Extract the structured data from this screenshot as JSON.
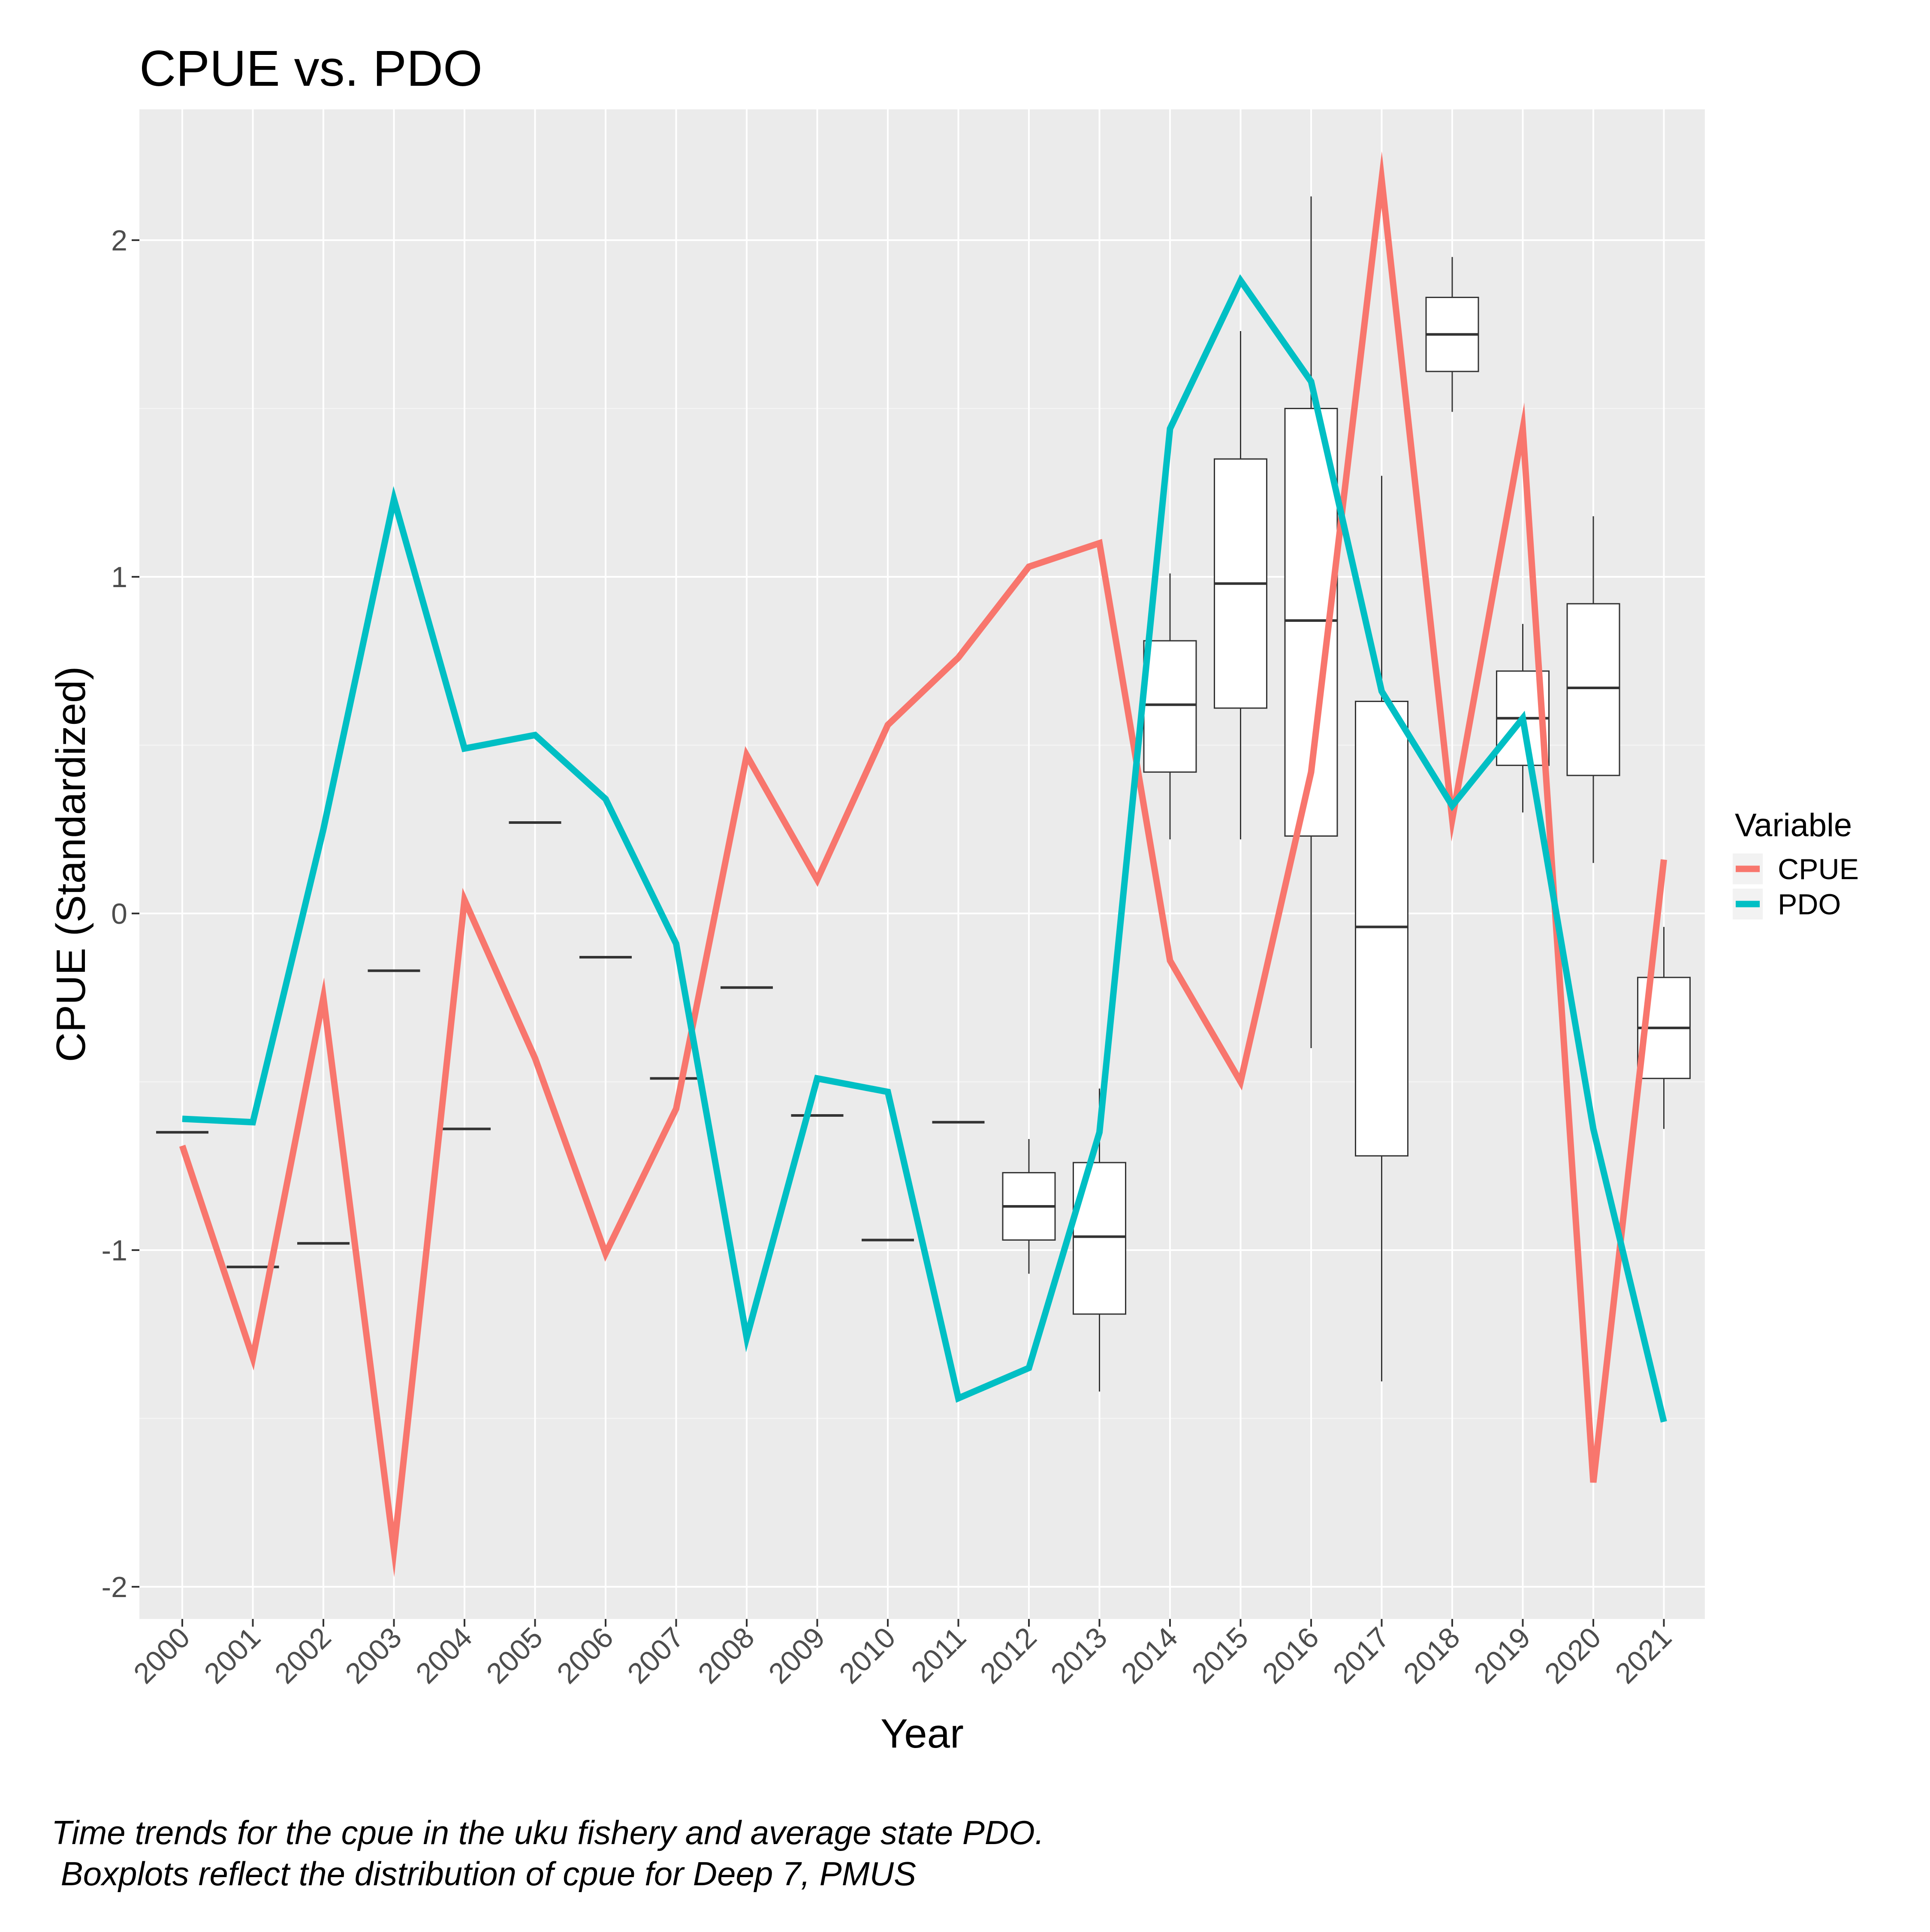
{
  "chart_data": {
    "type": "line",
    "title": "CPUE vs. PDO",
    "xlabel": "Year",
    "ylabel": "CPUE (Standardized)",
    "categories": [
      "2000",
      "2001",
      "2002",
      "2003",
      "2004",
      "2005",
      "2006",
      "2007",
      "2008",
      "2009",
      "2010",
      "2011",
      "2012",
      "2013",
      "2014",
      "2015",
      "2016",
      "2017",
      "2018",
      "2019",
      "2020",
      "2021"
    ],
    "ylim": [
      -2.1,
      2.4
    ],
    "yticks": [
      -2,
      -1,
      0,
      1,
      2
    ],
    "ytick_labels": [
      "-2",
      "-1",
      "0",
      "1",
      "2"
    ],
    "grid": true,
    "legend": {
      "title": "Variable",
      "position": "right"
    },
    "series": [
      {
        "name": "CPUE",
        "color": "#F8766D",
        "values": [
          -0.69,
          -1.32,
          -0.25,
          -1.89,
          0.04,
          -0.43,
          -1.01,
          -0.58,
          0.47,
          0.1,
          0.56,
          0.76,
          1.03,
          1.1,
          -0.14,
          -0.5,
          0.42,
          2.18,
          0.28,
          1.44,
          -1.69,
          0.16
        ]
      },
      {
        "name": "PDO",
        "color": "#00BFC4",
        "values": [
          -0.61,
          -0.62,
          0.25,
          1.23,
          0.49,
          0.53,
          0.34,
          -0.09,
          -1.26,
          -0.49,
          -0.53,
          -1.44,
          -1.35,
          -0.65,
          1.44,
          1.88,
          1.58,
          0.66,
          0.32,
          0.58,
          -0.64,
          -1.51
        ]
      }
    ],
    "boxplots": [
      {
        "year": "2000",
        "min": -0.65,
        "q1": -0.65,
        "median": -0.65,
        "q3": -0.65,
        "max": -0.65
      },
      {
        "year": "2001",
        "min": -1.05,
        "q1": -1.05,
        "median": -1.05,
        "q3": -1.05,
        "max": -1.05
      },
      {
        "year": "2002",
        "min": -0.98,
        "q1": -0.98,
        "median": -0.98,
        "q3": -0.98,
        "max": -0.98
      },
      {
        "year": "2003",
        "min": -0.17,
        "q1": -0.17,
        "median": -0.17,
        "q3": -0.17,
        "max": -0.17
      },
      {
        "year": "2004",
        "min": -0.64,
        "q1": -0.64,
        "median": -0.64,
        "q3": -0.64,
        "max": -0.64
      },
      {
        "year": "2005",
        "min": 0.27,
        "q1": 0.27,
        "median": 0.27,
        "q3": 0.27,
        "max": 0.27
      },
      {
        "year": "2006",
        "min": -0.13,
        "q1": -0.13,
        "median": -0.13,
        "q3": -0.13,
        "max": -0.13
      },
      {
        "year": "2007",
        "min": -0.49,
        "q1": -0.49,
        "median": -0.49,
        "q3": -0.49,
        "max": -0.49
      },
      {
        "year": "2008",
        "min": -0.22,
        "q1": -0.22,
        "median": -0.22,
        "q3": -0.22,
        "max": -0.22
      },
      {
        "year": "2009",
        "min": -0.6,
        "q1": -0.6,
        "median": -0.6,
        "q3": -0.6,
        "max": -0.6
      },
      {
        "year": "2010",
        "min": -0.97,
        "q1": -0.97,
        "median": -0.97,
        "q3": -0.97,
        "max": -0.97
      },
      {
        "year": "2011",
        "min": -0.62,
        "q1": -0.62,
        "median": -0.62,
        "q3": -0.62,
        "max": -0.62
      },
      {
        "year": "2012",
        "min": -1.07,
        "q1": -0.97,
        "median": -0.87,
        "q3": -0.77,
        "max": -0.67
      },
      {
        "year": "2013",
        "min": -1.42,
        "q1": -1.19,
        "median": -0.96,
        "q3": -0.74,
        "max": -0.52
      },
      {
        "year": "2014",
        "min": 0.22,
        "q1": 0.42,
        "median": 0.62,
        "q3": 0.81,
        "max": 1.01
      },
      {
        "year": "2015",
        "min": 0.22,
        "q1": 0.61,
        "median": 0.98,
        "q3": 1.35,
        "max": 1.73
      },
      {
        "year": "2016",
        "min": -0.4,
        "q1": 0.23,
        "median": 0.87,
        "q3": 1.5,
        "max": 2.13
      },
      {
        "year": "2017",
        "min": -1.39,
        "q1": -0.72,
        "median": -0.04,
        "q3": 0.63,
        "max": 1.3
      },
      {
        "year": "2018",
        "min": 1.49,
        "q1": 1.61,
        "median": 1.72,
        "q3": 1.83,
        "max": 1.95
      },
      {
        "year": "2019",
        "min": 0.3,
        "q1": 0.44,
        "median": 0.58,
        "q3": 0.72,
        "max": 0.86
      },
      {
        "year": "2020",
        "min": 0.15,
        "q1": 0.41,
        "median": 0.67,
        "q3": 0.92,
        "max": 1.18
      },
      {
        "year": "2021",
        "min": -0.64,
        "q1": -0.49,
        "median": -0.34,
        "q3": -0.19,
        "max": -0.04
      }
    ],
    "caption": [
      "Time trends for the cpue in the uku fishery and average state PDO.",
      " Boxplots reflect the distribution of cpue for Deep 7, PMUS"
    ]
  }
}
